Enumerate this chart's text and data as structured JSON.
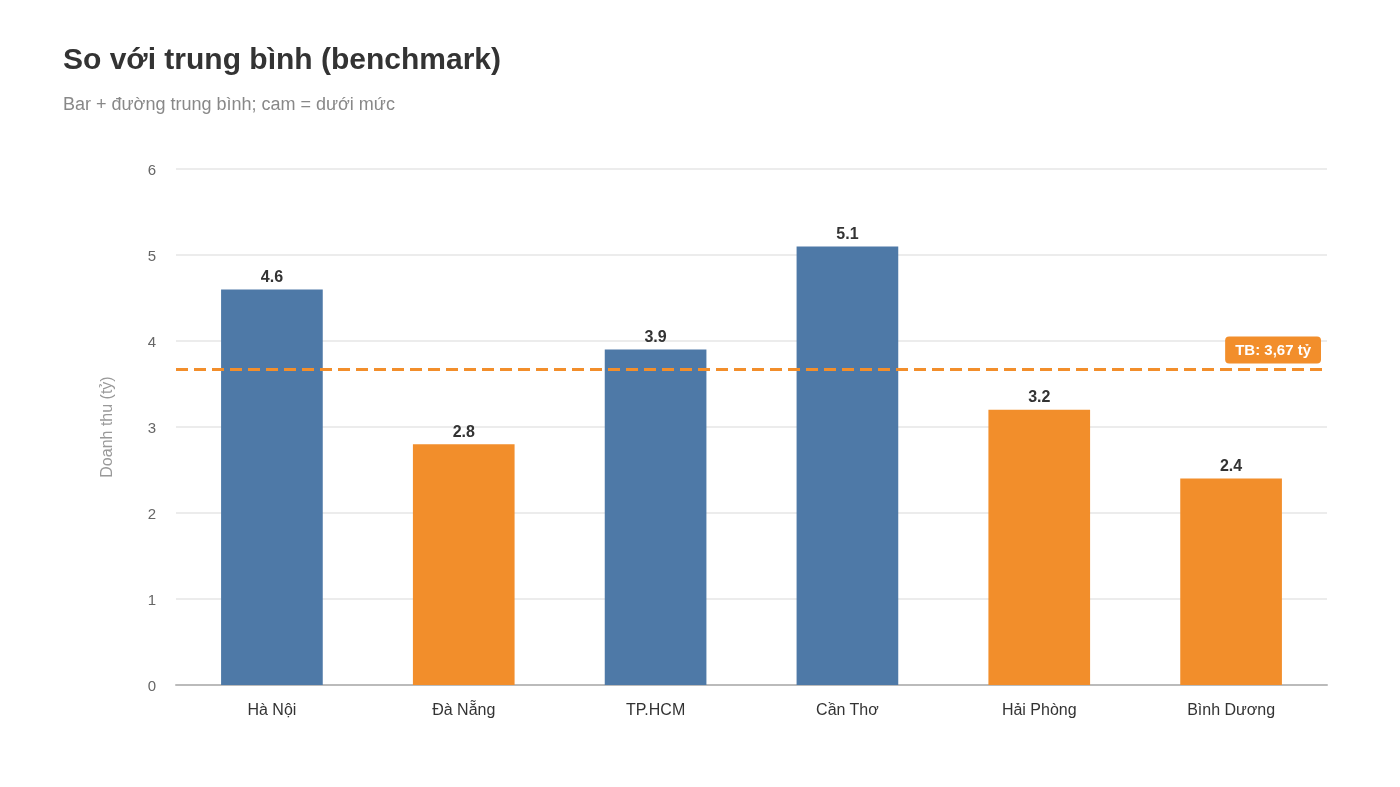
{
  "chart_data": {
    "type": "bar",
    "title": "So với trung bình (benchmark)",
    "subtitle": "Bar + đường trung bình; cam = dưới mức",
    "ylabel": "Doanh thu (tỷ)",
    "categories": [
      "Hà Nội",
      "Đà Nẵng",
      "TP.HCM",
      "Cần Thơ",
      "Hải Phòng",
      "Bình Dương"
    ],
    "values": [
      4.6,
      2.8,
      3.9,
      5.1,
      3.2,
      2.4
    ],
    "colors": [
      "#4e79a7",
      "#f28e2b",
      "#4e79a7",
      "#4e79a7",
      "#f28e2b",
      "#f28e2b"
    ],
    "ylim": [
      0,
      6
    ],
    "yticks": [
      0,
      1,
      2,
      3,
      4,
      5,
      6
    ],
    "grid": "y",
    "data_labels": true,
    "ref_lines": [
      {
        "axis": "y",
        "value": 3.67,
        "label": "TB: 3,67 tỷ",
        "color": "#f28e2b",
        "line_style": "dashed"
      }
    ]
  }
}
